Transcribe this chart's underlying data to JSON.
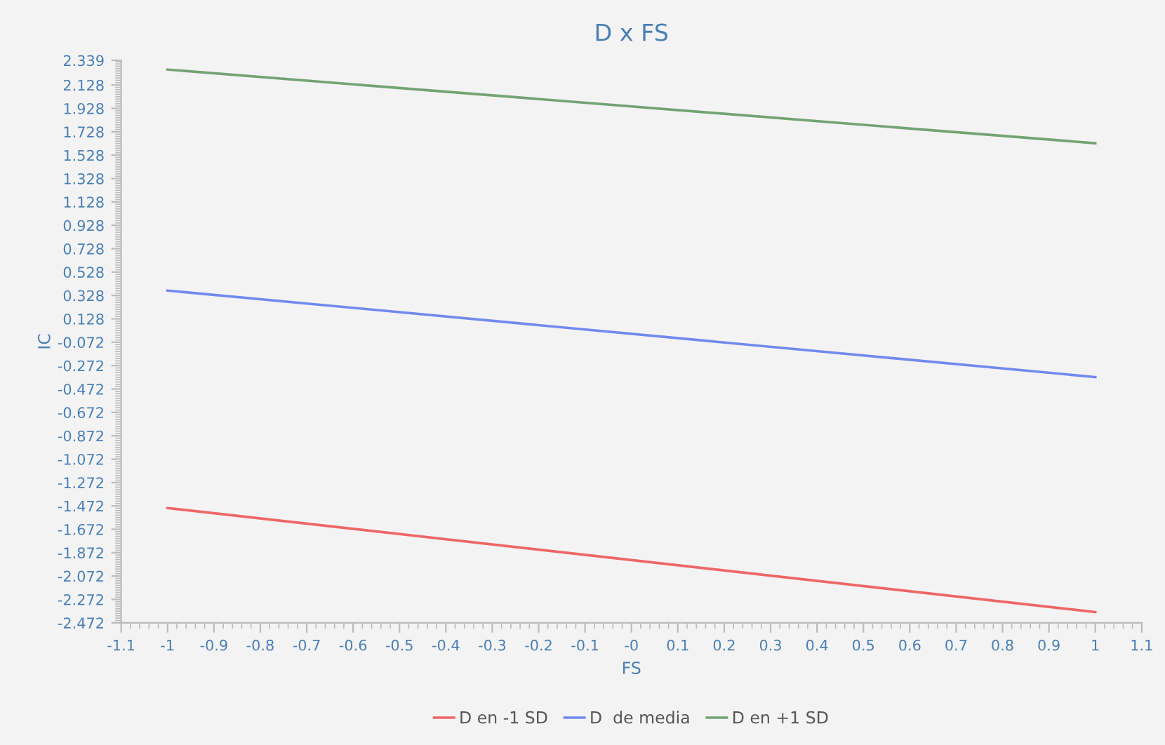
{
  "chart_data": {
    "type": "line",
    "title": "D x FS",
    "xlabel": "FS",
    "ylabel": "IC",
    "x": [
      -1,
      1
    ],
    "series": [
      {
        "name": "D en -1 SD",
        "color": "#ee6666",
        "values": [
          -1.49,
          -2.38
        ]
      },
      {
        "name": "D  de media",
        "color": "#7289ee",
        "values": [
          0.37,
          -0.37
        ]
      },
      {
        "name": "D en +1 SD",
        "color": "#73a373",
        "values": [
          2.26,
          1.63
        ]
      }
    ],
    "xlim": [
      -1.1,
      1.1
    ],
    "xticks": [
      -1.1,
      -1,
      -0.9,
      -0.8,
      -0.7,
      -0.6,
      -0.5,
      -0.4,
      -0.3,
      -0.2,
      -0.1,
      {
        "value": 0,
        "label": "-0"
      },
      0.1,
      0.2,
      0.3,
      0.4,
      0.5,
      0.6,
      0.7,
      0.8,
      0.9,
      1,
      1.1
    ],
    "ylim": [
      -2.472,
      2.339
    ],
    "yticks": [
      -2.472,
      -2.272,
      -2.072,
      -1.872,
      -1.672,
      -1.472,
      -1.272,
      -1.072,
      -0.872,
      -0.672,
      -0.472,
      -0.272,
      -0.072,
      0.128,
      0.328,
      0.528,
      0.728,
      0.928,
      1.128,
      1.328,
      1.528,
      1.728,
      1.928,
      2.128,
      2.339
    ],
    "grid": false,
    "legend": "bottom",
    "marker": "none",
    "line_style": "solid"
  }
}
